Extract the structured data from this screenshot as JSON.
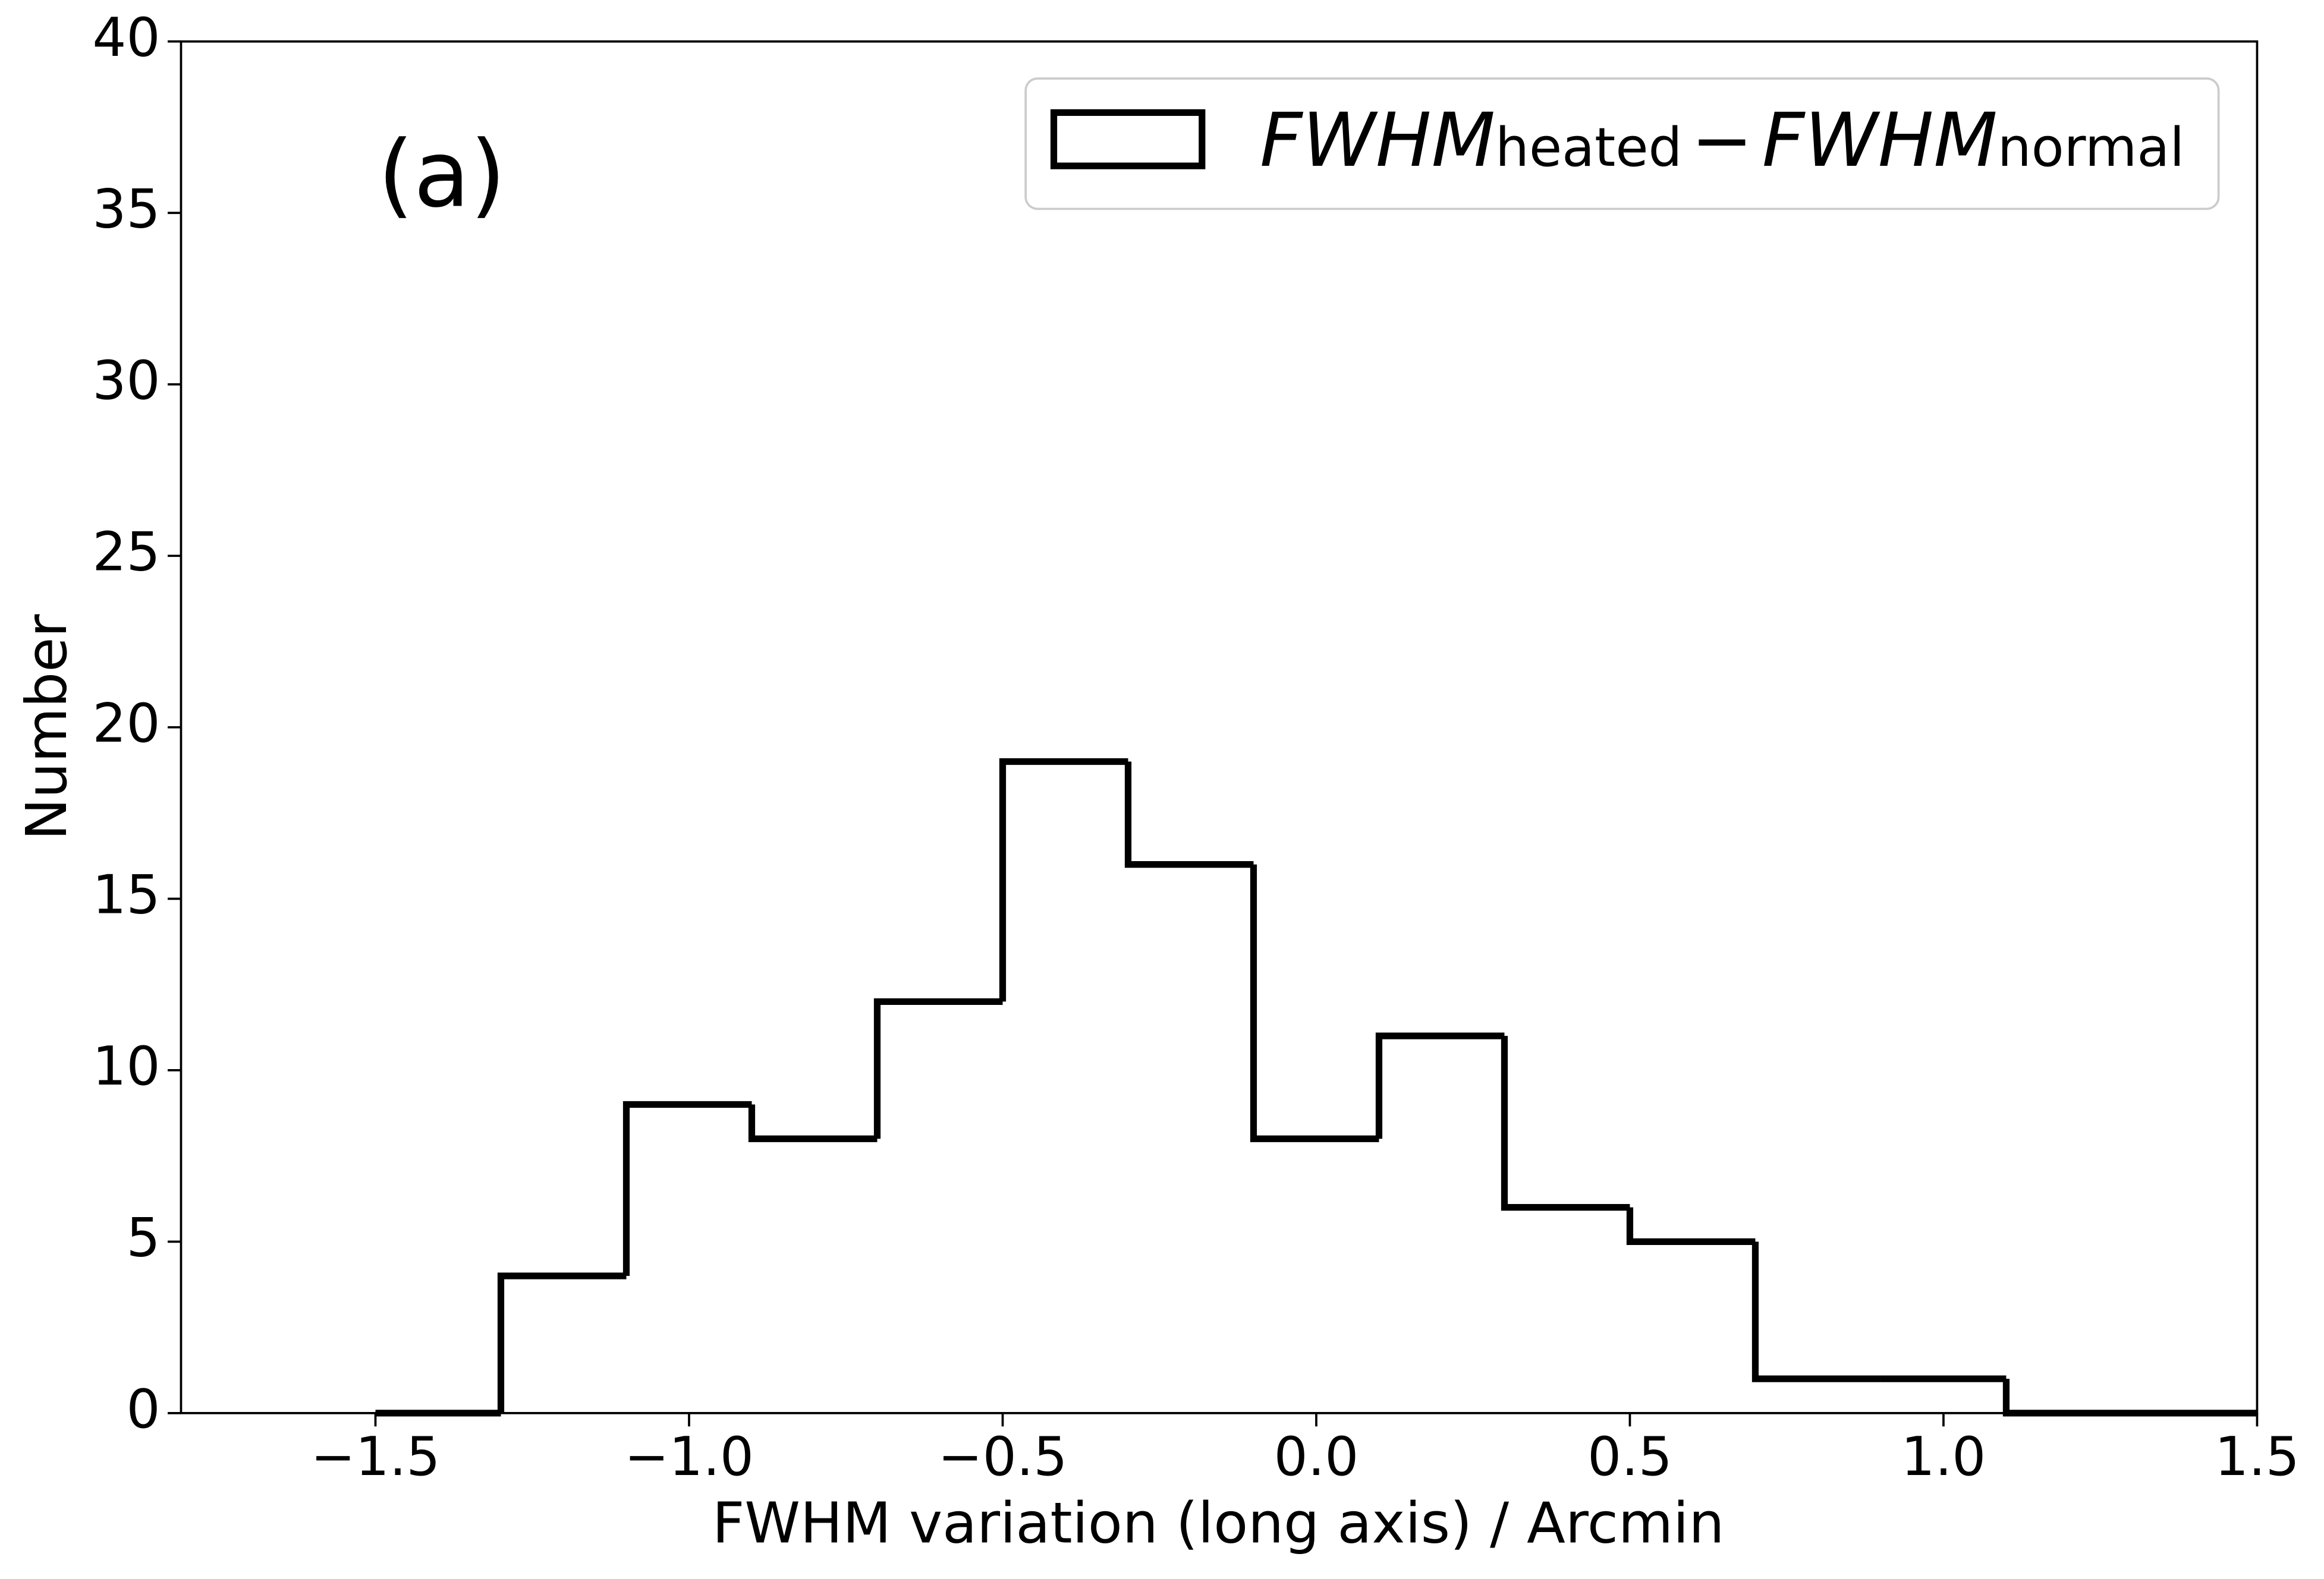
{
  "chart_data": {
    "type": "histogram",
    "annotation": "(a)",
    "x_label": "FWHM variation (long axis) / Arcmin",
    "y_label": "Number",
    "bins": [
      -1.5,
      -1.3,
      -1.1,
      -0.9,
      -0.7,
      -0.5,
      -0.3,
      -0.1,
      0.1,
      0.3,
      0.5,
      0.7,
      0.9,
      1.1,
      1.3,
      1.5
    ],
    "series": [
      {
        "name": [
          "FWHM",
          "heated",
          "−",
          "FWHM",
          "normal"
        ],
        "color": "#000000",
        "values": [
          0,
          4,
          9,
          8,
          12,
          19,
          16,
          8,
          11,
          6,
          5,
          1,
          1,
          0,
          0
        ]
      }
    ],
    "xlim": [
      -1.81,
      1.5
    ],
    "ylim": [
      0,
      40
    ],
    "xticks": [
      {
        "value": -1.5,
        "label": "−1.5"
      },
      {
        "value": -1.0,
        "label": "−1.0"
      },
      {
        "value": -0.5,
        "label": "−0.5"
      },
      {
        "value": 0,
        "label": "0.0"
      },
      0.5,
      {
        "value": 1,
        "label": "1.0"
      },
      1.5
    ],
    "yticks": [
      0,
      5,
      10,
      15,
      20,
      25,
      30,
      35,
      40
    ],
    "grid": false,
    "legend_position": "upper right"
  }
}
